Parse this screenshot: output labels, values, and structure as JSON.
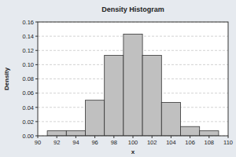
{
  "chart_data": {
    "type": "histogram",
    "title": "Density Histogram",
    "x_label": "x",
    "y_label": "Density",
    "bins": [
      91,
      93,
      95,
      97,
      99,
      101,
      103,
      105,
      107,
      109
    ],
    "values": [
      0.007,
      0.007,
      0.05,
      0.113,
      0.143,
      0.113,
      0.047,
      0.013,
      0.007
    ],
    "color": "#c0c0c0",
    "xlim": [
      90,
      110
    ],
    "xticks": [
      90,
      92,
      94,
      96,
      98,
      100,
      102,
      104,
      106,
      108,
      110
    ],
    "ylim": [
      0,
      0.16
    ],
    "yticks": [
      {
        "value": 0,
        "label": "0.00"
      },
      0.02,
      0.04,
      0.06,
      0.08,
      {
        "value": 0.1,
        "label": "0.10"
      },
      0.12,
      0.14,
      0.16
    ],
    "grid": true
  }
}
